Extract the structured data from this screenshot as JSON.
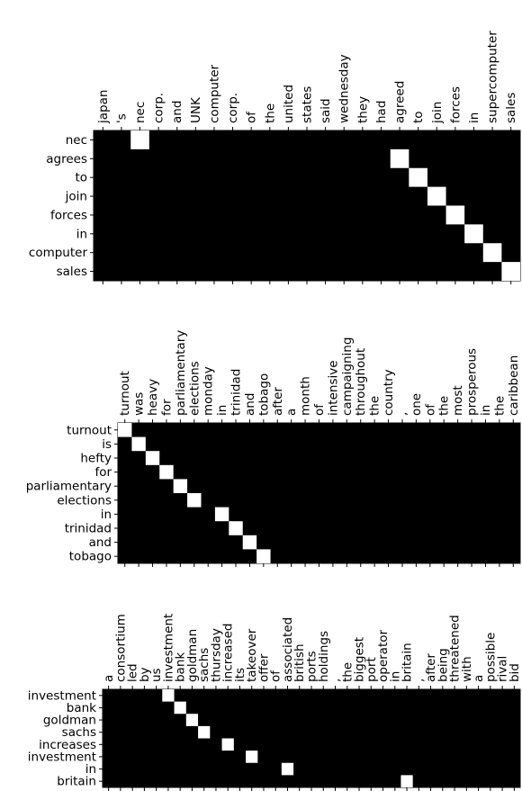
{
  "chart_data": [
    {
      "type": "heatmap",
      "x_tokens": [
        "japan",
        "'s",
        "nec",
        "corp.",
        "and",
        "UNK",
        "computer",
        "corp.",
        "of",
        "the",
        "united",
        "states",
        "said",
        "wednesday",
        "they",
        "had",
        "agreed",
        "to",
        "join",
        "forces",
        "in",
        "supercomputer",
        "sales"
      ],
      "y_tokens": [
        "nec",
        "agrees",
        "to",
        "join",
        "forces",
        "in",
        "computer",
        "sales"
      ],
      "cells": [
        [
          0,
          2
        ],
        [
          1,
          16
        ],
        [
          2,
          17
        ],
        [
          3,
          18
        ],
        [
          4,
          19
        ],
        [
          5,
          20
        ],
        [
          6,
          21
        ],
        [
          7,
          22
        ]
      ],
      "value_range": [
        0,
        1
      ],
      "colors": {
        "low": "#000000",
        "high": "#ffffff"
      }
    },
    {
      "type": "heatmap",
      "x_tokens": [
        "turnout",
        "was",
        "heavy",
        "for",
        "parliamentary",
        "elections",
        "monday",
        "in",
        "trinidad",
        "and",
        "tobago",
        "after",
        "a",
        "month",
        "of",
        "intensive",
        "campaigning",
        "throughout",
        "the",
        "country",
        ",",
        "one",
        "of",
        "the",
        "most",
        "prosperous",
        "in",
        "the",
        "caribbean"
      ],
      "y_tokens": [
        "turnout",
        "is",
        "hefty",
        "for",
        "parliamentary",
        "elections",
        "in",
        "trinidad",
        "and",
        "tobago"
      ],
      "cells": [
        [
          0,
          0
        ],
        [
          1,
          1
        ],
        [
          2,
          2
        ],
        [
          3,
          3
        ],
        [
          4,
          4
        ],
        [
          5,
          5
        ],
        [
          6,
          7
        ],
        [
          7,
          8
        ],
        [
          8,
          9
        ],
        [
          9,
          10
        ]
      ],
      "value_range": [
        0,
        1
      ],
      "colors": {
        "low": "#000000",
        "high": "#ffffff"
      }
    },
    {
      "type": "heatmap",
      "x_tokens": [
        "a",
        "consortium",
        "led",
        "by",
        "us",
        "investment",
        "bank",
        "goldman",
        "sachs",
        "thursday",
        "increased",
        "its",
        "takeover",
        "offer",
        "of",
        "associated",
        "british",
        "ports",
        "holdings",
        ",",
        "the",
        "biggest",
        "port",
        "operator",
        "in",
        "britain",
        ",",
        "after",
        "being",
        "threatened",
        "with",
        "a",
        "possible",
        "rival",
        "bid"
      ],
      "y_tokens": [
        "investment",
        "bank",
        "goldman",
        "sachs",
        "increases",
        "investment",
        "in",
        "britain"
      ],
      "cells": [
        [
          0,
          5
        ],
        [
          1,
          6
        ],
        [
          2,
          7
        ],
        [
          3,
          8
        ],
        [
          4,
          10
        ],
        [
          5,
          12
        ],
        [
          6,
          15
        ],
        [
          7,
          25
        ]
      ],
      "value_range": [
        0,
        1
      ],
      "colors": {
        "low": "#000000",
        "high": "#ffffff"
      }
    }
  ]
}
